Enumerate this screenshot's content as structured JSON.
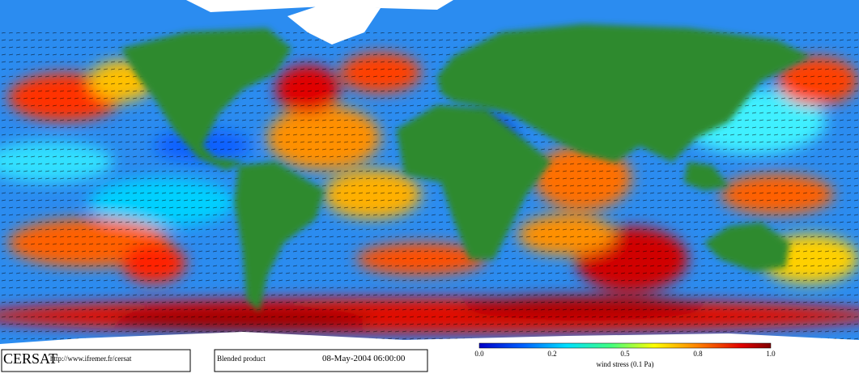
{
  "logo": "CERSAT",
  "url": "http://www.ifremer.fr/cersat",
  "product": "Blended product",
  "date": "08-May-2004 06:00:00",
  "colorbar": {
    "ticks": [
      "0.0",
      "0.2",
      "0.5",
      "0.8",
      "1.0"
    ],
    "label": "wind stress (0.1 Pa)"
  }
}
